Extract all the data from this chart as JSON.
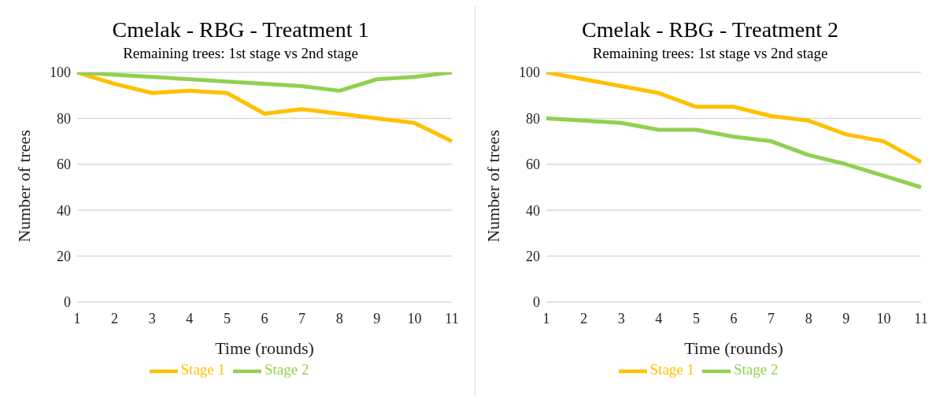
{
  "chart_data": [
    {
      "type": "line",
      "title": "Cmelak - RBG - Treatment 1",
      "subtitle": "Remaining trees: 1st stage vs 2nd stage",
      "xlabel": "Time (rounds)",
      "ylabel": "Number of trees",
      "categories": [
        "1",
        "2",
        "3",
        "4",
        "5",
        "6",
        "7",
        "8",
        "9",
        "10",
        "11"
      ],
      "series": [
        {
          "name": "Stage 1",
          "color": "#ffc000",
          "values": [
            100,
            95,
            91,
            92,
            91,
            82,
            84,
            82,
            80,
            78,
            70
          ]
        },
        {
          "name": "Stage 2",
          "color": "#92d050",
          "values": [
            100,
            99,
            98,
            97,
            96,
            95,
            94,
            92,
            97,
            98,
            100
          ]
        }
      ],
      "ylim": [
        0,
        100
      ],
      "yticks": [
        0,
        20,
        40,
        60,
        80,
        100
      ],
      "grid": "y",
      "legend": "bottom",
      "marker": "none",
      "line_style": "solid"
    },
    {
      "type": "line",
      "title": "Cmelak - RBG - Treatment 2",
      "subtitle": "Remaining trees: 1st stage vs 2nd stage",
      "xlabel": "Time (rounds)",
      "ylabel": "Number of trees",
      "categories": [
        "1",
        "2",
        "3",
        "4",
        "5",
        "6",
        "7",
        "8",
        "9",
        "10",
        "11"
      ],
      "series": [
        {
          "name": "Stage 1",
          "color": "#ffc000",
          "values": [
            100,
            97,
            94,
            91,
            85,
            85,
            81,
            79,
            73,
            70,
            61
          ]
        },
        {
          "name": "Stage 2",
          "color": "#92d050",
          "values": [
            80,
            79,
            78,
            75,
            75,
            72,
            70,
            64,
            60,
            55,
            50
          ]
        }
      ],
      "ylim": [
        0,
        100
      ],
      "yticks": [
        0,
        20,
        40,
        60,
        80,
        100
      ],
      "grid": "y",
      "legend": "bottom",
      "marker": "none",
      "line_style": "solid"
    }
  ]
}
